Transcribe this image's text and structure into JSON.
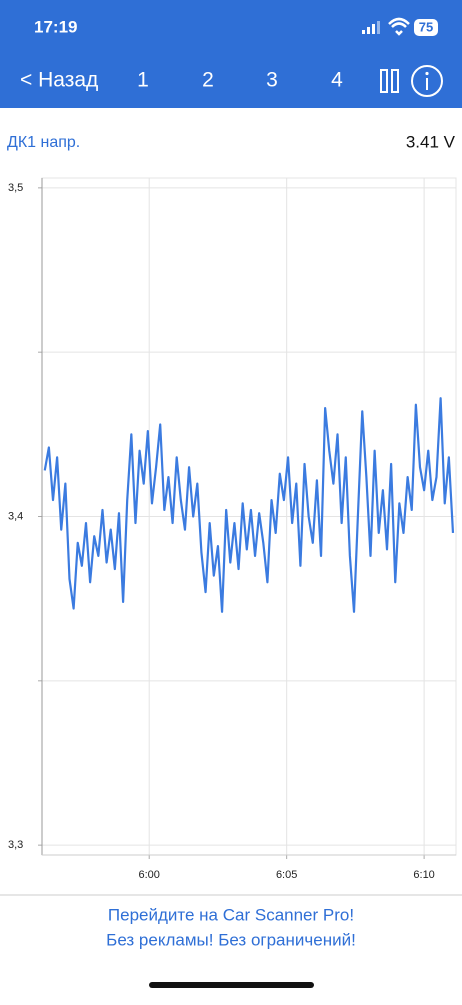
{
  "status_bar": {
    "time": "17:19",
    "battery": "75"
  },
  "nav": {
    "back": "< Назад",
    "tabs": [
      "1",
      "2",
      "3",
      "4"
    ]
  },
  "sensor": {
    "name": "ДК1 напр.",
    "value": "3.41 V"
  },
  "chart_data": {
    "type": "line",
    "x": [
      356.2,
      356.35,
      356.5,
      356.65,
      356.8,
      356.95,
      357.1,
      357.25,
      357.4,
      357.55,
      357.7,
      357.85,
      358,
      358.15,
      358.3,
      358.45,
      358.6,
      358.75,
      358.9,
      359.05,
      359.2,
      359.35,
      359.5,
      359.65,
      359.8,
      359.95,
      360.1,
      360.25,
      360.4,
      360.55,
      360.7,
      360.85,
      361,
      361.15,
      361.3,
      361.45,
      361.6,
      361.75,
      361.9,
      362.05,
      362.2,
      362.35,
      362.5,
      362.65,
      362.8,
      362.95,
      363.1,
      363.25,
      363.4,
      363.55,
      363.7,
      363.85,
      364,
      364.15,
      364.3,
      364.45,
      364.6,
      364.75,
      364.9,
      365.05,
      365.2,
      365.35,
      365.5,
      365.65,
      365.8,
      365.95,
      366.1,
      366.25,
      366.4,
      366.55,
      366.7,
      366.85,
      367,
      367.15,
      367.3,
      367.45,
      367.6,
      367.75,
      367.9,
      368.05,
      368.2,
      368.35,
      368.5,
      368.65,
      368.8,
      368.95,
      369.1,
      369.25,
      369.4,
      369.55,
      369.7,
      369.85,
      370,
      370.15,
      370.3,
      370.45,
      370.6,
      370.75,
      370.9,
      371.05
    ],
    "series": [
      {
        "color": "#3b7be0",
        "values": [
          3.414,
          3.421,
          3.405,
          3.418,
          3.396,
          3.41,
          3.381,
          3.372,
          3.392,
          3.385,
          3.398,
          3.38,
          3.394,
          3.388,
          3.402,
          3.386,
          3.396,
          3.384,
          3.401,
          3.374,
          3.405,
          3.425,
          3.398,
          3.42,
          3.41,
          3.426,
          3.404,
          3.415,
          3.428,
          3.402,
          3.412,
          3.398,
          3.418,
          3.405,
          3.396,
          3.415,
          3.4,
          3.41,
          3.389,
          3.377,
          3.398,
          3.382,
          3.391,
          3.371,
          3.402,
          3.386,
          3.398,
          3.384,
          3.404,
          3.39,
          3.402,
          3.388,
          3.401,
          3.392,
          3.38,
          3.405,
          3.395,
          3.413,
          3.405,
          3.418,
          3.398,
          3.41,
          3.385,
          3.416,
          3.4,
          3.392,
          3.411,
          3.388,
          3.433,
          3.42,
          3.41,
          3.425,
          3.398,
          3.418,
          3.388,
          3.371,
          3.402,
          3.432,
          3.412,
          3.388,
          3.42,
          3.395,
          3.408,
          3.39,
          3.416,
          3.38,
          3.404,
          3.395,
          3.412,
          3.402,
          3.434,
          3.415,
          3.408,
          3.42,
          3.405,
          3.412,
          3.436,
          3.404,
          3.418,
          3.395
        ]
      }
    ],
    "xlim": [
      356.1,
      371.16
    ],
    "xticks": [
      {
        "value": 360,
        "label": "6:00"
      },
      {
        "value": 365,
        "label": "6:05"
      },
      {
        "value": 370,
        "label": "6:10"
      }
    ],
    "ylim": [
      3.297,
      3.503
    ],
    "yticks": [
      {
        "value": 3.5,
        "label": "3,5"
      },
      {
        "value": 3.4,
        "label": "3,4"
      },
      {
        "value": 3.3,
        "label": "3,3"
      }
    ],
    "minor_yticks": [
      3.45,
      3.35
    ],
    "grid": true
  },
  "promo": {
    "lines": [
      "Перейдите на Car Scanner Pro!",
      "Без рекламы! Без ограничений!"
    ]
  }
}
